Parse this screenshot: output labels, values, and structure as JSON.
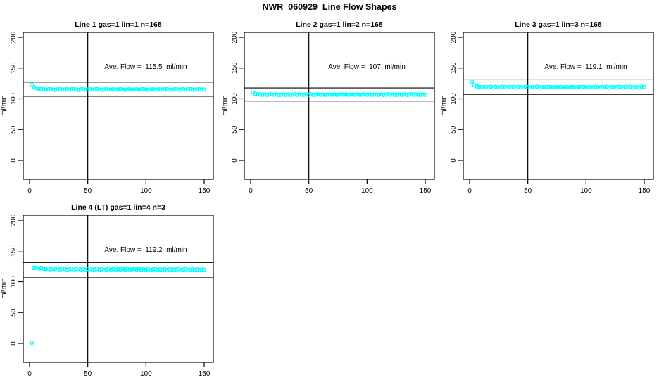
{
  "page_title": "NWR_060929  Line Flow Shapes",
  "accent_color": "#00FFFF",
  "chart_data": [
    {
      "type": "scatter",
      "title": "Line 1 gas=1 lin=1 n=168",
      "annotation": "Ave. Flow =  115.5  ml/min",
      "ave_flow_ml_min": 115.5,
      "ylabel": "ml/min",
      "xticks": [
        0,
        50,
        100,
        150
      ],
      "yticks": [
        0,
        50,
        100,
        150,
        200
      ],
      "xlim": [
        -5.4,
        159.1
      ],
      "ylim": [
        -31,
        208
      ],
      "vline_x": 50,
      "hlines": [
        127.1,
        104.0
      ],
      "grid": false,
      "marker": "open-circle",
      "marker_color": "#00FFFF",
      "x": [
        2,
        4,
        6,
        8,
        10,
        12,
        14,
        16,
        18,
        20,
        22,
        24,
        26,
        28,
        30,
        32,
        34,
        36,
        38,
        40,
        42,
        44,
        46,
        48,
        50,
        52,
        54,
        56,
        58,
        60,
        62,
        64,
        66,
        68,
        70,
        72,
        74,
        76,
        78,
        80,
        82,
        84,
        86,
        88,
        90,
        92,
        94,
        96,
        98,
        100,
        102,
        104,
        106,
        108,
        110,
        112,
        114,
        116,
        118,
        120,
        122,
        124,
        126,
        128,
        130,
        132,
        134,
        136,
        138,
        140,
        142,
        144,
        146,
        148,
        150
      ],
      "y": [
        122.4,
        118.5,
        117.1,
        116.3,
        115.8,
        115.4,
        114.8,
        115.3,
        115.7,
        115.0,
        114.6,
        115.2,
        115.6,
        114.9,
        115.1,
        115.4,
        114.8,
        115.3,
        115.7,
        115.0,
        114.6,
        115.2,
        115.6,
        114.9,
        115.1,
        115.4,
        114.8,
        115.3,
        115.7,
        115.0,
        114.6,
        115.2,
        115.6,
        114.9,
        115.1,
        115.4,
        114.8,
        115.3,
        115.7,
        115.0,
        114.6,
        115.2,
        115.6,
        114.9,
        115.1,
        115.4,
        114.8,
        115.3,
        115.7,
        115.0,
        114.6,
        115.2,
        115.6,
        114.9,
        115.1,
        115.4,
        114.8,
        115.3,
        115.7,
        115.0,
        114.6,
        115.2,
        115.6,
        114.9,
        115.1,
        115.4,
        114.8,
        115.3,
        115.7,
        115.0,
        114.6,
        115.2,
        115.6,
        114.9,
        115.1
      ]
    },
    {
      "type": "scatter",
      "title": "Line 2 gas=1 lin=2 n=168",
      "annotation": "Ave. Flow =  107  ml/min",
      "ave_flow_ml_min": 107,
      "ylabel": "ml/min",
      "xticks": [
        0,
        50,
        100,
        150
      ],
      "yticks": [
        0,
        50,
        100,
        150,
        200
      ],
      "xlim": [
        -5.4,
        159.1
      ],
      "ylim": [
        -31,
        208
      ],
      "vline_x": 50,
      "hlines": [
        117.7,
        96.3
      ],
      "grid": false,
      "marker": "open-circle",
      "marker_color": "#00FFFF",
      "x": [
        2,
        4,
        6,
        8,
        10,
        12,
        14,
        16,
        18,
        20,
        22,
        24,
        26,
        28,
        30,
        32,
        34,
        36,
        38,
        40,
        42,
        44,
        46,
        48,
        50,
        52,
        54,
        56,
        58,
        60,
        62,
        64,
        66,
        68,
        70,
        72,
        74,
        76,
        78,
        80,
        82,
        84,
        86,
        88,
        90,
        92,
        94,
        96,
        98,
        100,
        102,
        104,
        106,
        108,
        110,
        112,
        114,
        116,
        118,
        120,
        122,
        124,
        126,
        128,
        130,
        132,
        134,
        136,
        138,
        140,
        142,
        144,
        146,
        148,
        150
      ],
      "y": [
        110.3,
        108.0,
        107.3,
        107.0,
        106.5,
        107.2,
        106.3,
        106.9,
        107.4,
        106.6,
        107.1,
        106.4,
        106.8,
        107.0,
        106.5,
        107.2,
        106.3,
        106.9,
        107.4,
        106.6,
        107.1,
        106.4,
        106.8,
        107.0,
        106.5,
        107.2,
        106.3,
        106.9,
        107.4,
        106.6,
        107.1,
        106.4,
        106.8,
        107.0,
        106.5,
        107.2,
        106.3,
        106.9,
        107.4,
        106.6,
        107.1,
        106.4,
        106.8,
        107.0,
        106.5,
        107.2,
        106.3,
        106.9,
        107.4,
        106.6,
        107.1,
        106.4,
        106.8,
        107.0,
        106.5,
        107.2,
        106.3,
        106.9,
        107.4,
        106.6,
        107.1,
        106.4,
        106.8,
        107.0,
        106.5,
        107.2,
        106.3,
        106.9,
        107.4,
        106.6,
        107.1,
        106.4,
        106.8,
        107.0,
        106.5
      ]
    },
    {
      "type": "scatter",
      "title": "Line 3 gas=1 lin=3 n=168",
      "annotation": "Ave. Flow =  119.1  ml/min",
      "ave_flow_ml_min": 119.1,
      "ylabel": "ml/min",
      "xticks": [
        0,
        50,
        100,
        150
      ],
      "yticks": [
        0,
        50,
        100,
        150,
        200
      ],
      "xlim": [
        -5.4,
        159.1
      ],
      "ylim": [
        -31,
        208
      ],
      "vline_x": 50,
      "hlines": [
        131.0,
        107.2
      ],
      "grid": false,
      "marker": "open-circle",
      "marker_color": "#00FFFF",
      "x": [
        2,
        4,
        6,
        8,
        10,
        12,
        14,
        16,
        18,
        20,
        22,
        24,
        26,
        28,
        30,
        32,
        34,
        36,
        38,
        40,
        42,
        44,
        46,
        48,
        50,
        52,
        54,
        56,
        58,
        60,
        62,
        64,
        66,
        68,
        70,
        72,
        74,
        76,
        78,
        80,
        82,
        84,
        86,
        88,
        90,
        92,
        94,
        96,
        98,
        100,
        102,
        104,
        106,
        108,
        110,
        112,
        114,
        116,
        118,
        120,
        122,
        124,
        126,
        128,
        130,
        132,
        134,
        136,
        138,
        140,
        142,
        144,
        146,
        148,
        150
      ],
      "y": [
        128.0,
        122.3,
        120.4,
        119.7,
        119.0,
        118.4,
        119.2,
        118.6,
        119.4,
        118.2,
        119.1,
        118.8,
        118.5,
        119.3,
        119.0,
        118.4,
        119.2,
        118.6,
        119.4,
        118.2,
        119.1,
        118.8,
        118.5,
        119.3,
        119.0,
        118.4,
        119.2,
        118.6,
        119.4,
        118.2,
        119.1,
        118.8,
        118.5,
        119.3,
        119.0,
        118.4,
        119.2,
        118.6,
        119.4,
        118.2,
        119.1,
        118.8,
        118.5,
        119.3,
        119.0,
        118.4,
        119.2,
        118.6,
        119.4,
        118.2,
        119.1,
        118.8,
        118.5,
        119.3,
        119.0,
        118.4,
        119.2,
        118.6,
        119.4,
        118.2,
        119.1,
        118.8,
        118.5,
        119.3,
        119.0,
        118.4,
        119.2,
        118.6,
        119.4,
        118.2,
        119.1,
        118.8,
        118.5,
        119.3,
        119.0
      ]
    },
    {
      "type": "scatter",
      "title": "Line 4 (LT) gas=1 lin=4 n=3",
      "annotation": "Ave. Flow =  119.2  ml/min",
      "ave_flow_ml_min": 119.2,
      "ylabel": "ml/min",
      "xticks": [
        0,
        50,
        100,
        150
      ],
      "yticks": [
        0,
        50,
        100,
        150,
        200
      ],
      "xlim": [
        -5.4,
        159.1
      ],
      "ylim": [
        -31,
        208
      ],
      "vline_x": 50,
      "hlines": [
        131.1,
        107.3
      ],
      "grid": false,
      "marker": "open-circle",
      "marker_color": "#00FFFF",
      "x": [
        2,
        4,
        6,
        8,
        10,
        12,
        14,
        16,
        18,
        20,
        22,
        24,
        26,
        28,
        30,
        32,
        34,
        36,
        38,
        40,
        42,
        44,
        46,
        48,
        50,
        52,
        54,
        56,
        58,
        60,
        62,
        64,
        66,
        68,
        70,
        72,
        74,
        76,
        78,
        80,
        82,
        84,
        86,
        88,
        90,
        92,
        94,
        96,
        98,
        100,
        102,
        104,
        106,
        108,
        110,
        112,
        114,
        116,
        118,
        120,
        122,
        124,
        126,
        128,
        130,
        132,
        134,
        136,
        138,
        140,
        142,
        144,
        146,
        148,
        150
      ],
      "y": [
        1.0,
        123.0,
        122.2,
        121.4,
        122.6,
        121.0,
        120.4,
        121.8,
        120.2,
        121.2,
        120.6,
        121.6,
        119.8,
        120.8,
        121.4,
        119.6,
        120.4,
        121.0,
        119.4,
        120.6,
        121.2,
        119.8,
        120.6,
        119.2,
        120.8,
        121.4,
        119.6,
        120.2,
        120.9,
        119.4,
        120.5,
        119.0,
        120.0,
        121.0,
        119.5,
        120.7,
        119.2,
        120.3,
        119.8,
        120.9,
        119.4,
        120.5,
        119.0,
        120.2,
        121.0,
        119.6,
        120.8,
        119.3,
        120.0,
        119.7,
        120.4,
        119.1,
        119.9,
        120.6,
        119.3,
        120.1,
        119.6,
        120.3,
        118.9,
        119.8,
        120.2,
        119.4,
        119.9,
        120.5,
        119.1,
        119.7,
        120.3,
        118.9,
        119.5,
        120.0,
        119.3,
        119.8,
        119.0,
        119.6,
        119.2
      ]
    }
  ]
}
